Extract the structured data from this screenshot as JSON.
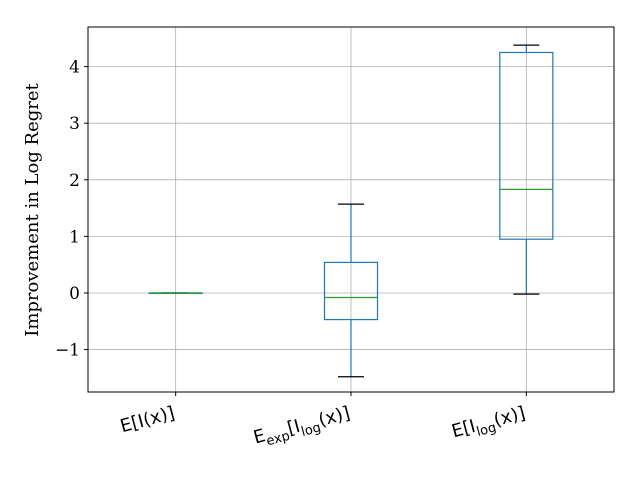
{
  "chart_data": {
    "type": "box",
    "ylabel": "Improvement in Log Regret",
    "xlabel": "",
    "ylim": [
      -1.75,
      4.7
    ],
    "yticks": [
      -1,
      0,
      1,
      2,
      3,
      4
    ],
    "ytick_labels": [
      "−1",
      "0",
      "1",
      "2",
      "3",
      "4"
    ],
    "grid": true,
    "categories": [
      {
        "main": "E[I(x)]",
        "sub": ""
      },
      {
        "main": "E",
        "sub": "exp",
        "rest": "[I",
        "sub2": "log",
        "tail": "(x)]"
      },
      {
        "main": "E[I",
        "sub": "log",
        "tail": "(x)]"
      }
    ],
    "boxes": [
      {
        "whisker_low": 0.0,
        "q1": 0.0,
        "median": 0.0,
        "q3": 0.0,
        "whisker_high": 0.0
      },
      {
        "whisker_low": -1.48,
        "q1": -0.47,
        "median": -0.08,
        "q3": 0.54,
        "whisker_high": 1.57
      },
      {
        "whisker_low": -0.02,
        "q1": 0.95,
        "median": 1.83,
        "q3": 4.25,
        "whisker_high": 4.38
      }
    ],
    "colors": {
      "box": "#1f77b4",
      "median": "#2ca02c",
      "cap": "#000000",
      "grid": "#b0b0b0"
    }
  }
}
